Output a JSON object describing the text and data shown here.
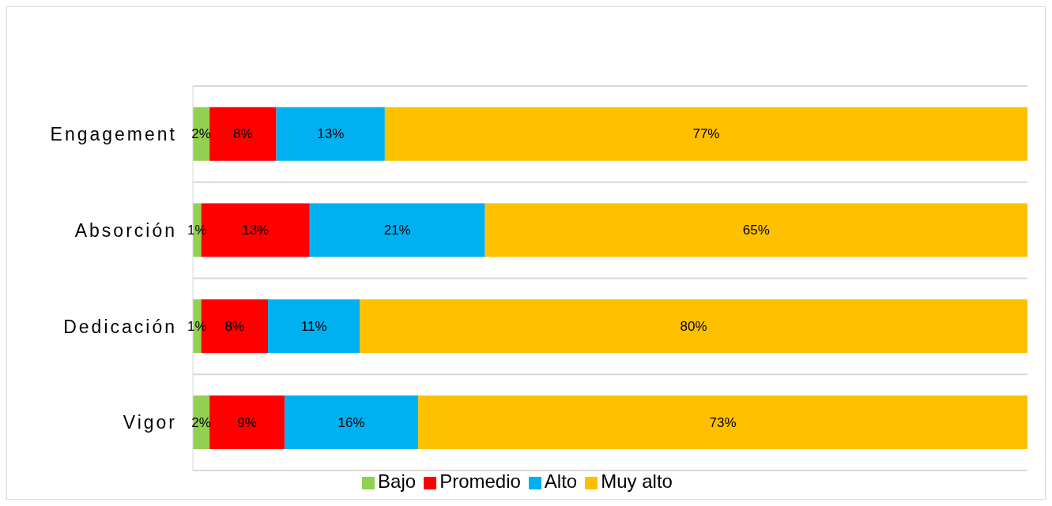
{
  "chart_data": {
    "type": "bar",
    "orientation": "horizontal",
    "stacked": true,
    "categories": [
      "Engagement",
      "Absorción",
      "Dedicación",
      "Vigor"
    ],
    "series": [
      {
        "name": "Bajo",
        "color": "#92d050",
        "values": [
          2,
          1,
          1,
          2
        ],
        "value_labels": [
          "2%",
          "1%",
          "1%",
          "2%"
        ]
      },
      {
        "name": "Promedio",
        "color": "#ff0000",
        "values": [
          8,
          13,
          8,
          9
        ],
        "value_labels": [
          "8%",
          "13%",
          "8%",
          "9%"
        ]
      },
      {
        "name": "Alto",
        "color": "#00b0f0",
        "values": [
          13,
          21,
          11,
          16
        ],
        "value_labels": [
          "13%",
          "21%",
          "11%",
          "16%"
        ]
      },
      {
        "name": "Muy alto",
        "color": "#ffc000",
        "values": [
          77,
          65,
          80,
          73
        ],
        "value_labels": [
          "77%",
          "65%",
          "80%",
          "73%"
        ]
      }
    ],
    "xlim": [
      0,
      100
    ],
    "tick_labels": "y",
    "grid": "y",
    "legend": "bottom"
  }
}
